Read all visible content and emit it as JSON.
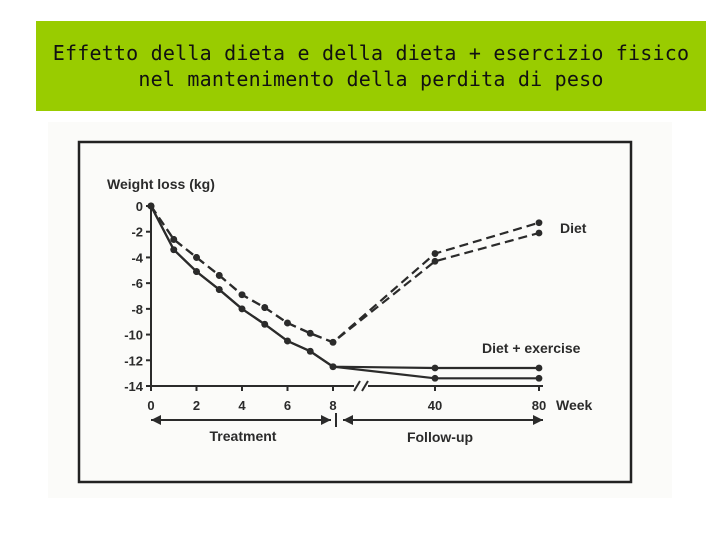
{
  "slide": {
    "title_line1": "Effetto della dieta e della dieta + esercizio fisico",
    "title_line2": "nel mantenimento della perdita di peso"
  },
  "chart_data": {
    "type": "line",
    "ylabel": "Weight loss (kg)",
    "xlabel": "Week",
    "x": [
      0,
      1,
      2,
      3,
      4,
      5,
      6,
      7,
      8,
      40,
      80
    ],
    "x_ticks": [
      0,
      2,
      4,
      6,
      8,
      40,
      80
    ],
    "y_ticks": [
      0,
      -2,
      -4,
      -6,
      -8,
      -10,
      -12,
      -14
    ],
    "ylim": [
      -14,
      0
    ],
    "axis_break_between": [
      8,
      40
    ],
    "series": [
      {
        "name": "Diet",
        "style": "dashed",
        "points": [
          {
            "x": 0,
            "y": 0
          },
          {
            "x": 1,
            "y": -2.6
          },
          {
            "x": 2,
            "y": -4
          },
          {
            "x": 3,
            "y": -5.4
          },
          {
            "x": 4,
            "y": -6.9
          },
          {
            "x": 5,
            "y": -7.9
          },
          {
            "x": 6,
            "y": -9.1
          },
          {
            "x": 7,
            "y": -9.9
          },
          {
            "x": 8,
            "y": -10.6
          },
          {
            "x": 40,
            "y": -4.3
          },
          {
            "x": 80,
            "y": -2.1
          }
        ]
      },
      {
        "name": "Diet",
        "style": "dashed",
        "points": [
          {
            "x": 0,
            "y": 0
          },
          {
            "x": 1,
            "y": -2.6
          },
          {
            "x": 2,
            "y": -4
          },
          {
            "x": 3,
            "y": -5.4
          },
          {
            "x": 4,
            "y": -6.9
          },
          {
            "x": 5,
            "y": -7.9
          },
          {
            "x": 6,
            "y": -9.1
          },
          {
            "x": 7,
            "y": -9.9
          },
          {
            "x": 8,
            "y": -10.6
          },
          {
            "x": 40,
            "y": -3.7
          },
          {
            "x": 80,
            "y": -1.3
          }
        ]
      },
      {
        "name": "Diet + exercise",
        "style": "solid",
        "points": [
          {
            "x": 0,
            "y": 0
          },
          {
            "x": 1,
            "y": -3.4
          },
          {
            "x": 2,
            "y": -5.1
          },
          {
            "x": 3,
            "y": -6.5
          },
          {
            "x": 4,
            "y": -8
          },
          {
            "x": 5,
            "y": -9.2
          },
          {
            "x": 6,
            "y": -10.5
          },
          {
            "x": 7,
            "y": -11.3
          },
          {
            "x": 8,
            "y": -12.5
          },
          {
            "x": 40,
            "y": -12.6
          },
          {
            "x": 80,
            "y": -12.6
          }
        ]
      },
      {
        "name": "Diet + exercise",
        "style": "solid",
        "points": [
          {
            "x": 0,
            "y": 0
          },
          {
            "x": 1,
            "y": -3.4
          },
          {
            "x": 2,
            "y": -5.1
          },
          {
            "x": 3,
            "y": -6.5
          },
          {
            "x": 4,
            "y": -8
          },
          {
            "x": 5,
            "y": -9.2
          },
          {
            "x": 6,
            "y": -10.5
          },
          {
            "x": 7,
            "y": -11.3
          },
          {
            "x": 8,
            "y": -12.5
          },
          {
            "x": 40,
            "y": -13.4
          },
          {
            "x": 80,
            "y": -13.4
          }
        ]
      }
    ],
    "annotations": {
      "diet_label": "Diet",
      "exercise_label": "Diet + exercise",
      "treatment_label": "Treatment",
      "followup_label": "Follow-up"
    },
    "colors": {
      "line": "#2b2b2b",
      "frame": "#222222"
    }
  }
}
